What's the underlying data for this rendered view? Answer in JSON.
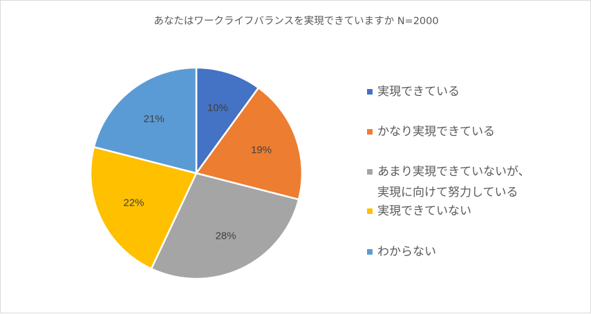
{
  "chart_data": {
    "type": "pie",
    "title": "あなたはワークライフバランスを実現できていますか N=2000",
    "start_angle_deg": 0,
    "direction": "clockwise",
    "legend_position": "right",
    "slices": [
      {
        "label": "実現できている",
        "legend_lines": [
          "実現できている"
        ],
        "value": 10,
        "value_label": "10%",
        "color": "#4472c4"
      },
      {
        "label": "かなり実現できている",
        "legend_lines": [
          "かなり実現できている"
        ],
        "value": 19,
        "value_label": "19%",
        "color": "#ed7d31"
      },
      {
        "label": "あまり実現できていないが、実現に向けて努力している",
        "legend_lines": [
          "あまり実現できていないが、",
          "実現に向けて努力している"
        ],
        "value": 28,
        "value_label": "28%",
        "color": "#a5a5a5"
      },
      {
        "label": "実現できていない",
        "legend_lines": [
          "実現できていない"
        ],
        "value": 22,
        "value_label": "22%",
        "color": "#ffc000"
      },
      {
        "label": "わからない",
        "legend_lines": [
          "わからない"
        ],
        "value": 21,
        "value_label": "21%",
        "color": "#5b9bd5"
      }
    ]
  }
}
